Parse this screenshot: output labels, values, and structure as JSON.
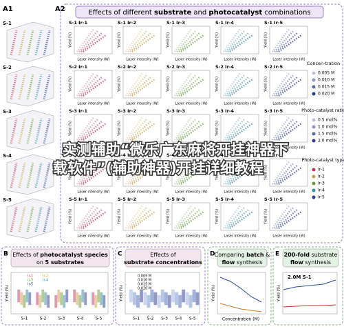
{
  "panel_a1": {
    "label": "A1",
    "rows": [
      "S-1",
      "S-2",
      "S-3",
      "S-4",
      "S-5"
    ]
  },
  "panel_a2": {
    "label": "A2",
    "title_parts": [
      "Effects of different ",
      "substrate",
      " and ",
      "photocatalyst",
      " combinations"
    ],
    "cells": [
      [
        "S-1 Ir-1",
        "S-1 Ir-2",
        "S-1 Ir-3",
        "S-1 Ir-4",
        "S-1 Ir-5"
      ],
      [
        "S-2 Ir-1",
        "S-2 Ir-2",
        "S-2 Ir-3",
        "S-2 Ir-4",
        "S-2 Ir-5"
      ],
      [
        "S-3 Ir-1",
        "S-3 Ir-2",
        "S-3 Ir-3",
        "S-3 Ir-4",
        "S-3 Ir-5"
      ],
      [
        "S-4 Ir-1",
        "S-4 Ir-2",
        "S-4 Ir-3",
        "S-4 Ir-4",
        "S-4 Ir-5"
      ],
      [
        "S-5 Ir-1",
        "S-5 Ir-2",
        "S-5 Ir-3",
        "S-5 Ir-4",
        "S-5 Ir-5"
      ]
    ],
    "x_label": "Laser intensity (W)",
    "y_label": "Yield (%)",
    "column_colors": [
      "#c0395a",
      "#c8a24a",
      "#6a9a3a",
      "#3a8aa0",
      "#2a3a8a"
    ]
  },
  "legends": [
    {
      "title": "Concen-tration",
      "items": [
        "0.005 M",
        "0.010 M",
        "0.015 M",
        "0.020 M"
      ]
    },
    {
      "title": "Photo-catalyst ratio",
      "items": [
        "0.5 mol%",
        "1.0 mol%",
        "1.5 mol%",
        "2.0 mol%"
      ]
    },
    {
      "title": "Photo-catalyst type",
      "items": [
        "Ir-1",
        "Ir-2",
        "Ir-3",
        "Ir-4",
        "Ir-5"
      ]
    }
  ],
  "panel_b": {
    "label": "B",
    "title_parts": [
      "Effects of ",
      "photocatalyst species",
      " on ",
      "5 substrates"
    ],
    "categories": [
      "S-1",
      "S-2",
      "S-3",
      "S-4",
      "S-5"
    ],
    "legend": [
      "Ir-1",
      "Ir-2",
      "Ir-3",
      "Ir-4",
      "Ir-5"
    ],
    "y_label": "Yield (%)"
  },
  "panel_c": {
    "label": "C",
    "title_parts": [
      "Effects of ",
      "substrate concentrations"
    ],
    "categories": [
      "S-1",
      "S-2",
      "S-3",
      "S-4",
      "S-5"
    ],
    "legend": [
      "0.005 M",
      "0.010 M",
      "0.015 M",
      "0.020 M"
    ],
    "y_label": "Yield (%)"
  },
  "panel_d": {
    "label": "D",
    "title_parts": [
      "Comparing ",
      "batch",
      " & ",
      "flow",
      " synthesis"
    ],
    "x_label": "Concentration (M)",
    "y_label": "Yield (%)"
  },
  "panel_e": {
    "label": "E",
    "title_parts": [
      "200-fold",
      " substrate ",
      "flow",
      " synthesis"
    ],
    "annotation": "2.0M S-1",
    "y_label": "Yield (%)"
  },
  "overlay": {
    "lines": [
      "实测辅助“微乐广东麻将开挂神器下",
      "载软件”(辅助神器)开挂详细教程"
    ]
  }
}
